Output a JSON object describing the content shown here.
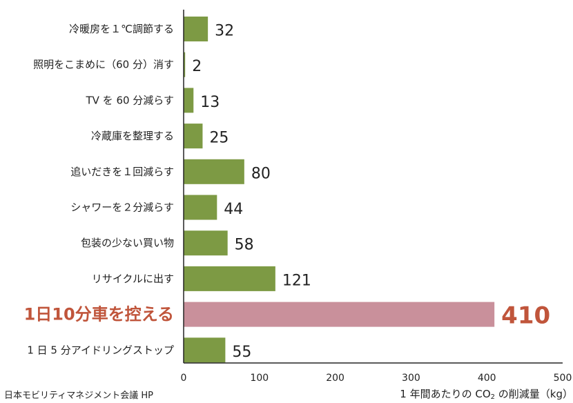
{
  "chart_data": {
    "type": "bar",
    "orientation": "horizontal",
    "categories": [
      "冷暖房を１℃調節する",
      "照明をこまめに（60 分）消す",
      "TV を 60 分減らす",
      "冷蔵庫を整理する",
      "追いだきを１回減らす",
      "シャワーを２分減らす",
      "包装の少ない買い物",
      "リサイクルに出す",
      "1日10分車を控える",
      "1 日 5 分アイドリングストップ"
    ],
    "values": [
      32,
      2,
      13,
      25,
      80,
      44,
      58,
      121,
      410,
      55
    ],
    "value_labels": [
      "32",
      "2",
      "13",
      "25",
      "80",
      "44",
      "58",
      "121",
      "410",
      "55"
    ],
    "highlight_index": 8,
    "xlim": [
      0,
      500
    ],
    "xticks": [
      "0",
      "100",
      "200",
      "300",
      "400",
      "500"
    ],
    "xlabel_parts": [
      "1 年間あたりの CO",
      "2",
      " の削減量（kg）"
    ],
    "grid": false,
    "legend": "none",
    "colors": {
      "bar": "#7d9a44",
      "highlight_bar": "#c9909b",
      "highlight_text": "#c0553b",
      "axis": "#222222"
    }
  },
  "source": "日本モビリティマネジメント会議 HP"
}
